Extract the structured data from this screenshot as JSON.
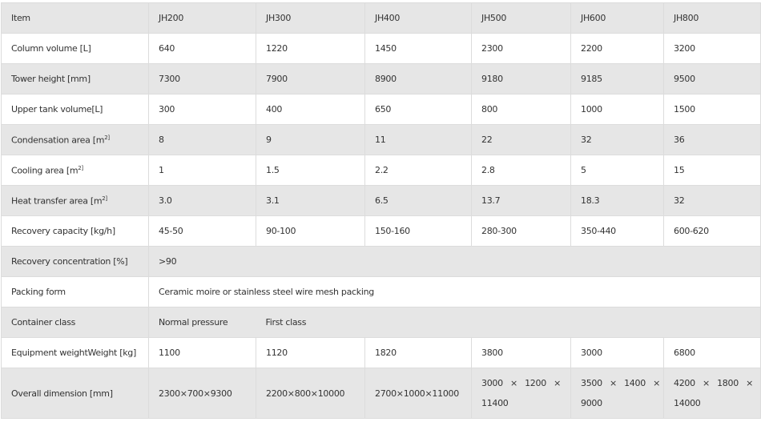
{
  "header": [
    "Item",
    "JH200",
    "JH300",
    "JH400",
    "JH500",
    "JH600",
    "JH800"
  ],
  "rows": [
    {
      "label": "Column volume [L]",
      "values": [
        "640",
        "1220",
        "1450",
        "2300",
        "2200",
        "3200"
      ]
    },
    {
      "label": "Tower height    [mm]",
      "values": [
        "7300",
        "7900",
        "8900",
        "9180",
        "9185",
        "9500"
      ]
    },
    {
      "label": "Upper tank volume[L]",
      "values": [
        "300",
        "400",
        "650",
        "800",
        "1000",
        "1500"
      ]
    },
    {
      "label": "Condensation area [m",
      "sup": "2]",
      "values": [
        "8",
        "9",
        "11",
        "22",
        "32",
        "36"
      ]
    },
    {
      "label": "Cooling area [m",
      "sup": "2]",
      "values": [
        "1",
        "1.5",
        "2.2",
        "2.8",
        "5",
        "15"
      ]
    },
    {
      "label": "Heat transfer area [m",
      "sup": "2]",
      "values": [
        "3.0",
        "3.1",
        "6.5",
        "13.7",
        "18.3",
        "32"
      ]
    },
    {
      "label": "Recovery capacity [kg/h]",
      "values": [
        "45-50",
        "90-100",
        "150-160",
        "280-300",
        "350-440",
        "600-620"
      ]
    },
    {
      "label": "Recovery concentration [%]",
      "value": ">90"
    },
    {
      "label": "Packing form",
      "value": "Ceramic moire or stainless steel wire mesh packing"
    },
    {
      "label": "Container class",
      "values": [
        "Normal pressure",
        "First class"
      ]
    },
    {
      "label": "Equipment weightWeight [kg]",
      "values": [
        "1100",
        "1120",
        "1820",
        "3800",
        "3000",
        "6800"
      ]
    },
    {
      "label": "Overall dimension [mm]",
      "values": [
        "2300×700×9300",
        "2200×800×10000",
        "2700×1000×11000",
        "3000 × 1200 × 11400",
        "3500 × 1400 × 9000",
        "4200 × 1800 × 14000"
      ]
    }
  ]
}
